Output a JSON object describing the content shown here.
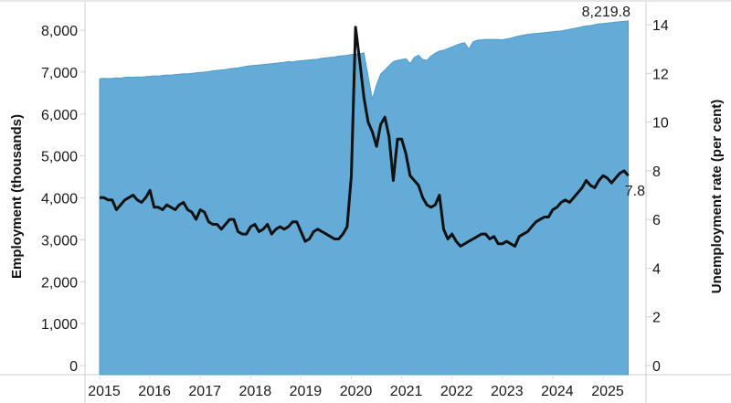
{
  "chart_data": {
    "type": "area+line",
    "title": "",
    "x_labels": [
      "2015",
      "2016",
      "2017",
      "2018",
      "2019",
      "2020",
      "2021",
      "2022",
      "2023",
      "2024",
      "2025"
    ],
    "x_range": [
      2015.0,
      2025.5
    ],
    "grid": false,
    "legend": null,
    "series": [
      {
        "name": "Employment (thousands)",
        "type": "area",
        "axis": "left",
        "color": "#64acd7",
        "start": 2015.0,
        "step_months": 1,
        "values": [
          6840,
          6850,
          6845,
          6850,
          6860,
          6855,
          6870,
          6880,
          6875,
          6885,
          6880,
          6890,
          6900,
          6910,
          6905,
          6920,
          6930,
          6925,
          6940,
          6950,
          6960,
          6955,
          6970,
          6980,
          6990,
          7000,
          7010,
          7030,
          7040,
          7050,
          7060,
          7080,
          7090,
          7100,
          7120,
          7140,
          7150,
          7160,
          7170,
          7180,
          7190,
          7200,
          7210,
          7220,
          7230,
          7250,
          7240,
          7260,
          7270,
          7280,
          7290,
          7300,
          7310,
          7330,
          7340,
          7350,
          7360,
          7380,
          7390,
          7400,
          7420,
          7430,
          7440,
          7460,
          6900,
          6350,
          6700,
          6950,
          7050,
          7150,
          7250,
          7280,
          7300,
          7320,
          7200,
          7350,
          7400,
          7300,
          7280,
          7380,
          7450,
          7500,
          7520,
          7560,
          7600,
          7640,
          7680,
          7700,
          7550,
          7720,
          7760,
          7770,
          7780,
          7780,
          7780,
          7775,
          7770,
          7790,
          7810,
          7840,
          7860,
          7880,
          7900,
          7910,
          7920,
          7930,
          7940,
          7950,
          7960,
          7970,
          7980,
          8000,
          8020,
          8040,
          8060,
          8080,
          8100,
          8110,
          8130,
          8150,
          8160,
          8170,
          8180,
          8190,
          8200,
          8210,
          8219.8
        ],
        "ylim": [
          0,
          8000
        ]
      },
      {
        "name": "Unemployment rate (per cent)",
        "type": "line",
        "axis": "right",
        "color": "#111111",
        "start": 2015.0,
        "step_months": 1,
        "values": [
          6.9,
          6.9,
          6.8,
          6.8,
          6.4,
          6.6,
          6.8,
          6.9,
          7.0,
          6.8,
          6.7,
          6.9,
          7.2,
          6.5,
          6.5,
          6.4,
          6.6,
          6.5,
          6.4,
          6.6,
          6.7,
          6.4,
          6.3,
          6.0,
          6.4,
          6.3,
          5.9,
          5.8,
          5.8,
          5.6,
          5.8,
          6.0,
          6.0,
          5.5,
          5.4,
          5.4,
          5.7,
          5.8,
          5.5,
          5.6,
          5.8,
          5.4,
          5.6,
          5.7,
          5.6,
          5.7,
          5.9,
          5.9,
          5.5,
          5.1,
          5.2,
          5.5,
          5.6,
          5.5,
          5.4,
          5.3,
          5.2,
          5.2,
          5.4,
          5.7,
          7.8,
          13.9,
          12.5,
          11.0,
          10.0,
          9.6,
          9.0,
          9.9,
          10.2,
          9.4,
          7.6,
          9.3,
          9.3,
          8.7,
          7.8,
          7.6,
          7.4,
          6.9,
          6.6,
          6.5,
          6.6,
          7.0,
          5.6,
          5.2,
          5.4,
          5.1,
          4.9,
          5.0,
          5.1,
          5.2,
          5.3,
          5.4,
          5.4,
          5.2,
          5.3,
          5.0,
          5.0,
          5.1,
          5.0,
          4.9,
          5.3,
          5.4,
          5.5,
          5.7,
          5.9,
          6.0,
          6.1,
          6.1,
          6.4,
          6.5,
          6.7,
          6.8,
          6.7,
          6.9,
          7.1,
          7.3,
          7.6,
          7.4,
          7.3,
          7.6,
          7.8,
          7.7,
          7.5,
          7.7,
          7.9,
          8.0,
          7.8
        ],
        "ylim": [
          0,
          14
        ]
      }
    ],
    "left_axis": {
      "title": "Employment (thousands)",
      "ticks": [
        0,
        1000,
        2000,
        3000,
        4000,
        5000,
        6000,
        7000,
        8000
      ],
      "tick_labels": [
        "0",
        "1,000",
        "2,000",
        "3,000",
        "4,000",
        "5,000",
        "6,000",
        "7,000",
        "8,000"
      ]
    },
    "right_axis": {
      "title": "Unemployment rate (per cent)",
      "ticks": [
        0,
        2,
        4,
        6,
        8,
        10,
        12,
        14
      ],
      "tick_labels": [
        "0",
        "2",
        "4",
        "6",
        "8",
        "10",
        "12",
        "14"
      ]
    },
    "annotations": [
      {
        "text": "8,219.8",
        "series": "Employment (thousands)"
      },
      {
        "text": "7.8",
        "series": "Unemployment rate (per cent)"
      }
    ]
  }
}
